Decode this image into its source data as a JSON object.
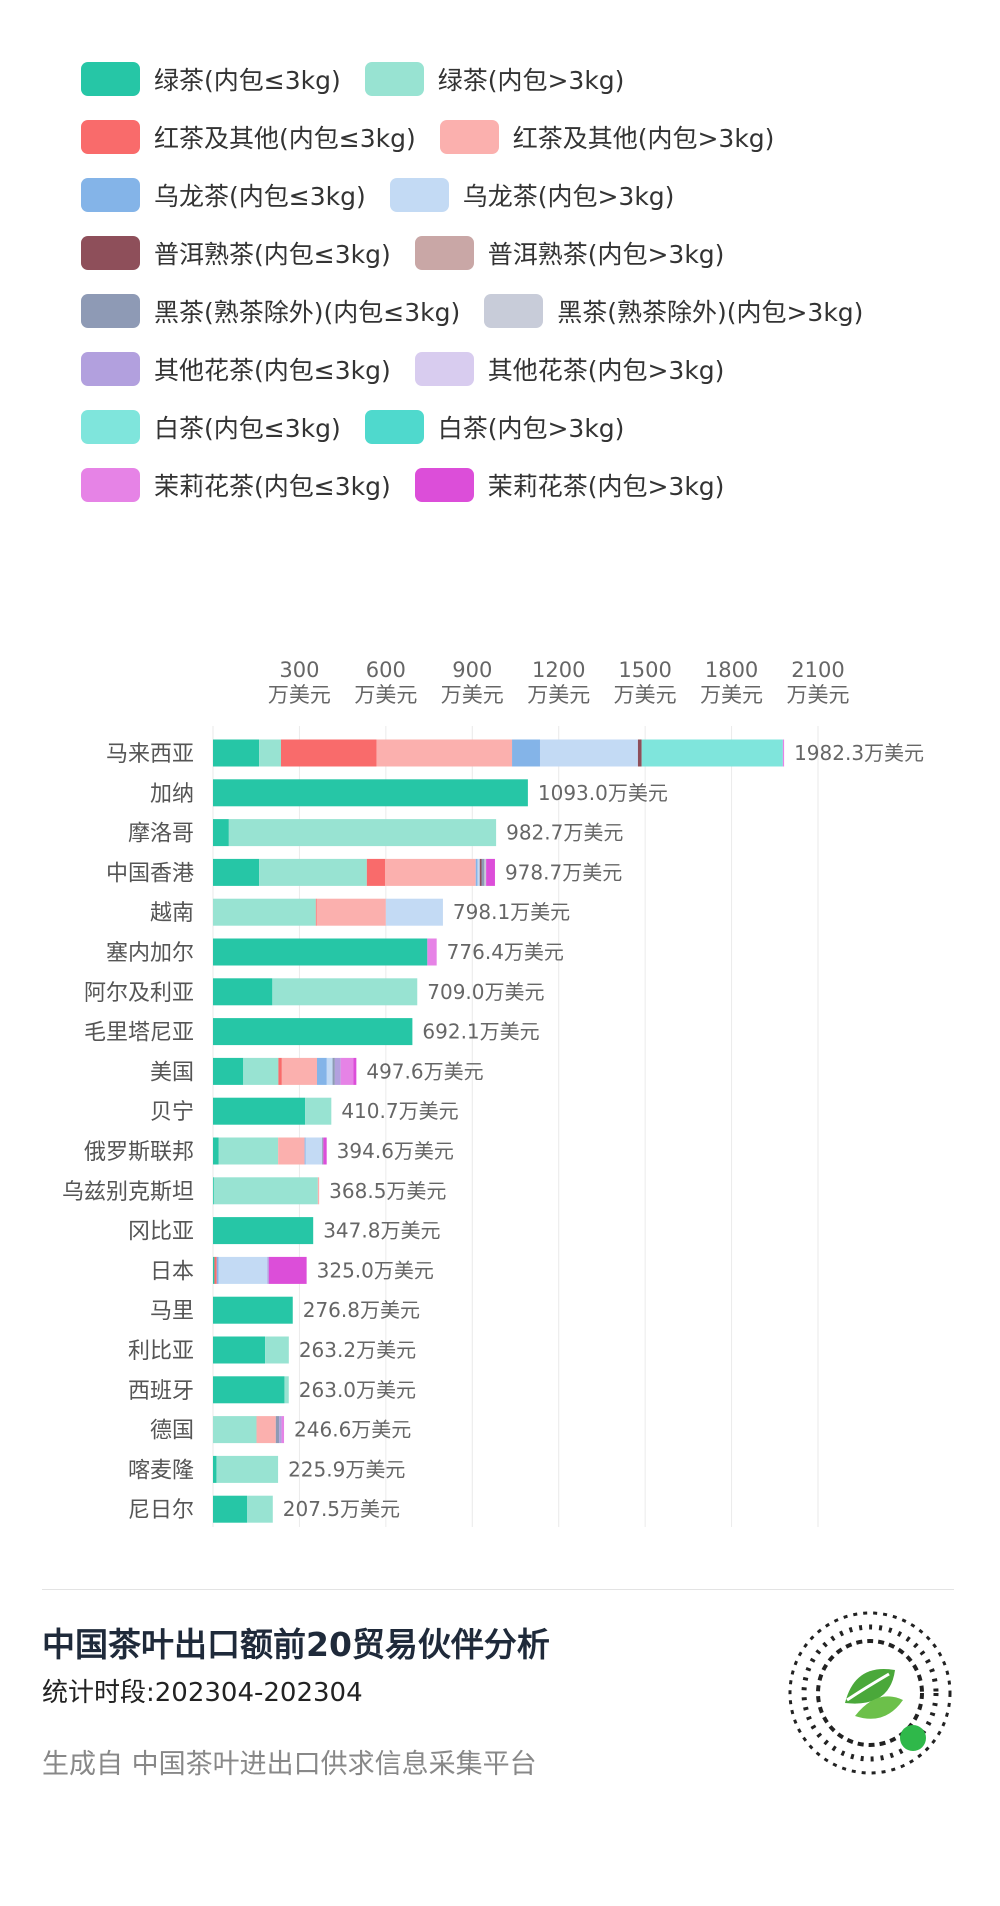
{
  "chart_data": {
    "type": "bar",
    "orientation": "horizontal",
    "stacked": true,
    "grid": true,
    "categories": [
      "马来西亚",
      "加纳",
      "摩洛哥",
      "中国香港",
      "越南",
      "塞内加尔",
      "阿尔及利亚",
      "毛里塔尼亚",
      "美国",
      "贝宁",
      "俄罗斯联邦",
      "乌兹别克斯坦",
      "冈比亚",
      "日本",
      "马里",
      "利比亚",
      "西班牙",
      "德国",
      "喀麦隆",
      "尼日尔"
    ],
    "xlim": [
      0,
      2100
    ],
    "xticks": [
      {
        "value": 300,
        "label": "300\n万美元"
      },
      {
        "value": 600,
        "label": "600\n万美元"
      },
      {
        "value": 900,
        "label": "900\n万美元"
      },
      {
        "value": 1200,
        "label": "1200\n万美元"
      },
      {
        "value": 1500,
        "label": "1500\n万美元"
      },
      {
        "value": 1800,
        "label": "1800\n万美元"
      },
      {
        "value": 2100,
        "label": "2100\n万美元"
      }
    ],
    "series": [
      {
        "name": "绿茶(内包≤3kg)",
        "color": "#26c6a6",
        "values": [
          160,
          1093,
          55,
          160,
          0,
          744,
          206,
          692.1,
          105,
          320,
          20,
          3,
          347.8,
          5,
          276.8,
          181,
          248,
          0,
          12,
          118
        ]
      },
      {
        "name": "绿茶(内包>3kg)",
        "color": "#98e3d2",
        "values": [
          76,
          0,
          927.7,
          374,
          357,
          0,
          503,
          0,
          122,
          90.7,
          206,
          361,
          0,
          0,
          0,
          82.2,
          15,
          151,
          213.9,
          89.5
        ]
      },
      {
        "name": "红茶及其他(内包≤3kg)",
        "color": "#f96b6b",
        "values": [
          332,
          0,
          0,
          63,
          3,
          0,
          0,
          0,
          12,
          0,
          0,
          0,
          0,
          8,
          0,
          0,
          0,
          0,
          0,
          0
        ]
      },
      {
        "name": "红茶及其他(内包>3kg)",
        "color": "#fbb0ae",
        "values": [
          470,
          0,
          0,
          315,
          240,
          0,
          0,
          0,
          122,
          0,
          92,
          4.5,
          0,
          0,
          0,
          0,
          0,
          67,
          0,
          0
        ]
      },
      {
        "name": "乌龙茶(内包≤3kg)",
        "color": "#84b4e8",
        "values": [
          97,
          0,
          0,
          6,
          0,
          0,
          0,
          0,
          34,
          0,
          3,
          0,
          0,
          6,
          0,
          0,
          0,
          0,
          0,
          0
        ]
      },
      {
        "name": "乌龙茶(内包>3kg)",
        "color": "#c3daf4",
        "values": [
          340,
          0,
          0,
          8,
          198.1,
          0,
          0,
          0,
          20,
          0,
          58,
          0,
          0,
          170,
          0,
          0,
          0,
          0,
          0,
          0
        ]
      },
      {
        "name": "普洱熟茶(内包≤3kg)",
        "color": "#8e4f5a",
        "values": [
          13,
          0,
          0,
          6,
          0,
          0,
          0,
          0,
          0,
          0,
          0,
          0,
          0,
          0,
          0,
          0,
          0,
          0,
          0,
          0
        ]
      },
      {
        "name": "普洱熟茶(内包>3kg)",
        "color": "#c9a7a6",
        "values": [
          0,
          0,
          0,
          0,
          0,
          0,
          0,
          0,
          0,
          0,
          0,
          0,
          0,
          0,
          0,
          0,
          0,
          0,
          0,
          0
        ]
      },
      {
        "name": "黑茶(熟茶除外)(内包≤3kg)",
        "color": "#8e9ab5",
        "values": [
          0,
          0,
          0,
          10,
          0,
          0,
          0,
          0,
          8,
          0,
          4,
          0,
          0,
          0,
          0,
          0,
          0,
          12,
          0,
          0
        ]
      },
      {
        "name": "黑茶(熟茶除外)(内包>3kg)",
        "color": "#c8ccd9",
        "values": [
          0,
          0,
          0,
          6,
          0,
          0,
          0,
          0,
          0,
          0,
          0,
          0,
          0,
          0,
          0,
          0,
          0,
          0,
          0,
          0
        ]
      },
      {
        "name": "其他花茶(内包≤3kg)",
        "color": "#b2a0de",
        "values": [
          0,
          0,
          0,
          0,
          0,
          0,
          0,
          0,
          20,
          0,
          0,
          0,
          0,
          5,
          0,
          0,
          0,
          8,
          0,
          0
        ]
      },
      {
        "name": "其他花茶(内包>3kg)",
        "color": "#d8ccef",
        "values": [
          0,
          0,
          0,
          0,
          0,
          0,
          0,
          0,
          0,
          0,
          0,
          0,
          0,
          0,
          0,
          0,
          0,
          0,
          0,
          0
        ]
      },
      {
        "name": "白茶(内包≤3kg)",
        "color": "#7fe5dc",
        "values": [
          490,
          0,
          0,
          0,
          0,
          0,
          0,
          0,
          0,
          0,
          0,
          0,
          0,
          0,
          0,
          0,
          0,
          0,
          0,
          0
        ]
      },
      {
        "name": "白茶(内包>3kg)",
        "color": "#4fd9cd",
        "values": [
          0,
          0,
          0,
          0,
          0,
          0,
          0,
          0,
          0,
          0,
          0,
          0,
          0,
          0,
          0,
          0,
          0,
          0,
          0,
          0
        ]
      },
      {
        "name": "茉莉花茶(内包≤3kg)",
        "color": "#e683e6",
        "values": [
          4.3,
          0,
          0,
          0,
          0,
          32.4,
          0,
          0,
          44.6,
          0,
          0,
          0,
          0,
          0,
          0,
          0,
          0,
          8.6,
          0,
          0
        ]
      },
      {
        "name": "茉莉花茶(内包>3kg)",
        "color": "#dc4ed9",
        "values": [
          0,
          0,
          0,
          30.7,
          0,
          0,
          0,
          0,
          10,
          0,
          11.6,
          0,
          0,
          131,
          0,
          0,
          0,
          0,
          0,
          0
        ]
      }
    ],
    "totals": [
      1982.3,
      1093.0,
      982.7,
      978.7,
      798.1,
      776.4,
      709.0,
      692.1,
      497.6,
      410.7,
      394.6,
      368.5,
      347.8,
      325.0,
      276.8,
      263.2,
      263.0,
      246.6,
      225.9,
      207.5
    ],
    "total_labels": [
      "1982.3万美元",
      "1093.0万美元",
      "982.7万美元",
      "978.7万美元",
      "798.1万美元",
      "776.4万美元",
      "709.0万美元",
      "692.1万美元",
      "497.6万美元",
      "410.7万美元",
      "394.6万美元",
      "368.5万美元",
      "347.8万美元",
      "325.0万美元",
      "276.8万美元",
      "263.2万美元",
      "263.0万美元",
      "246.6万美元",
      "225.9万美元",
      "207.5万美元"
    ]
  },
  "footer": {
    "title": "中国茶叶出口额前20贸易伙伴分析",
    "period": "统计时段:202304-202304",
    "source": "生成自 中国茶叶进出口供求信息采集平台"
  }
}
